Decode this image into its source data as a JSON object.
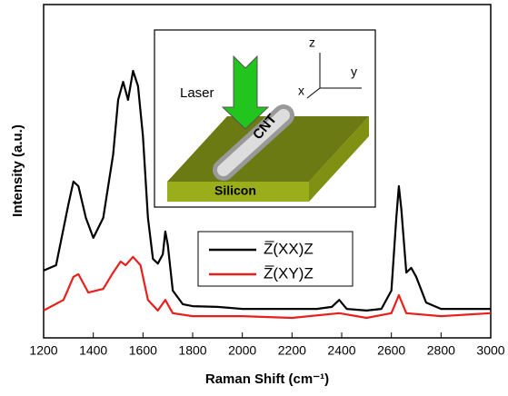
{
  "chart_data": {
    "type": "line",
    "x_label": "Raman Shift (cm⁻¹)",
    "y_label": "Intensity (a.u.)",
    "xlim": [
      1200,
      3000
    ],
    "xticks": [
      1200,
      1400,
      1600,
      1800,
      2000,
      2200,
      2400,
      2600,
      2800,
      3000
    ],
    "ylim": [
      0,
      100
    ],
    "legend": "center",
    "annotations": [
      "Laser",
      "CNT",
      "Silicon",
      "z",
      "y",
      "x"
    ],
    "series": [
      {
        "name": "Z̅(XX)Z",
        "color": "#000000",
        "x": [
          1200,
          1250,
          1300,
          1320,
          1340,
          1370,
          1400,
          1440,
          1480,
          1500,
          1520,
          1540,
          1560,
          1580,
          1600,
          1620,
          1640,
          1660,
          1680,
          1690,
          1700,
          1720,
          1760,
          1800,
          1900,
          2000,
          2100,
          2200,
          2300,
          2360,
          2390,
          2420,
          2500,
          2560,
          2600,
          2620,
          2630,
          2640,
          2660,
          2680,
          2700,
          2740,
          2800,
          2900,
          3000
        ],
        "values": [
          20.2,
          21.8,
          40.1,
          46.9,
          45.5,
          36.0,
          30.0,
          36.0,
          55.0,
          71.4,
          76.8,
          71.4,
          80.1,
          75.5,
          60.5,
          36.0,
          23.7,
          22.3,
          25.1,
          31.9,
          27.8,
          14.2,
          10.1,
          9.5,
          9.3,
          8.7,
          8.7,
          8.7,
          8.7,
          9.3,
          11.4,
          8.7,
          8.2,
          8.7,
          14.2,
          36.0,
          45.5,
          38.7,
          19.6,
          21.0,
          18.3,
          10.6,
          8.7,
          8.7,
          8.7
        ]
      },
      {
        "name": "Z̅(XY)Z",
        "color": "#e8201c",
        "x": [
          1200,
          1280,
          1320,
          1340,
          1380,
          1440,
          1480,
          1510,
          1530,
          1560,
          1590,
          1620,
          1660,
          1690,
          1720,
          1800,
          2000,
          2200,
          2390,
          2500,
          2600,
          2630,
          2660,
          2800,
          3000
        ],
        "values": [
          8.2,
          11.4,
          18.3,
          19.1,
          13.6,
          14.7,
          19.6,
          22.9,
          21.8,
          24.3,
          21.8,
          11.4,
          8.2,
          11.4,
          7.4,
          6.5,
          6.5,
          6.0,
          7.4,
          6.0,
          7.4,
          12.8,
          7.4,
          6.5,
          7.4
        ]
      }
    ]
  }
}
